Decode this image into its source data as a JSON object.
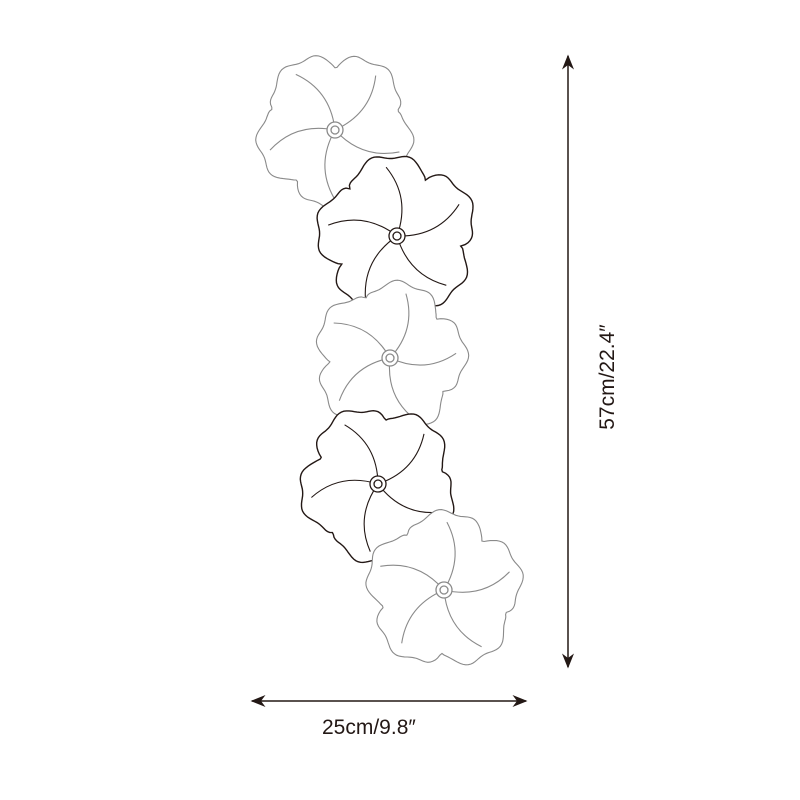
{
  "dimensions": {
    "width_label": "25cm/9.8″",
    "height_label": "57cm/22.4″"
  },
  "colors": {
    "dark_outline": "#231815",
    "light_outline": "#8a8a8a"
  }
}
